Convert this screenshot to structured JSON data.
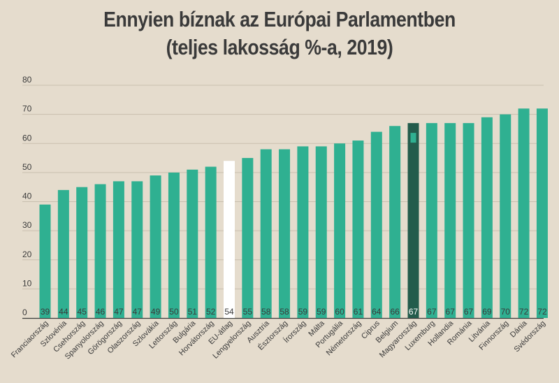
{
  "chart_data": {
    "type": "bar",
    "title": "Ennyien bíznak az Európai Parlamentben",
    "subtitle": "(teljes lakosság %-a, 2019)",
    "xlabel": "",
    "ylabel": "",
    "ylim": [
      0,
      80
    ],
    "yticks": [
      0,
      10,
      20,
      30,
      40,
      50,
      60,
      70,
      80
    ],
    "grid": true,
    "categories": [
      "Franciaország",
      "Szlovénia",
      "Csehország",
      "Spanyolország",
      "Görögország",
      "Olaszország",
      "Szlovákia",
      "Lettország",
      "Bulgária",
      "Horvátország",
      "EU-átlag",
      "Lengyelország",
      "Ausztria",
      "Észtország",
      "Írország",
      "Málta",
      "Portugália",
      "Németország",
      "Ciprus",
      "Belgium",
      "Magyarország",
      "Luxemburg",
      "Hollandia",
      "Románia",
      "Litvánia",
      "Finnország",
      "Dánia",
      "Svédország"
    ],
    "values": [
      39,
      44,
      45,
      46,
      47,
      47,
      49,
      50,
      51,
      52,
      54,
      55,
      58,
      58,
      59,
      59,
      60,
      61,
      64,
      66,
      67,
      67,
      67,
      67,
      69,
      70,
      72,
      72
    ],
    "colors": {
      "default": "#2fb091",
      "eu_average": "#ffffff",
      "highlight": "#235c4c",
      "highlight_marker": "#2fb091",
      "grid": "#c9bfae"
    },
    "highlight_category": "Magyarország",
    "average_category": "EU-átlag"
  }
}
